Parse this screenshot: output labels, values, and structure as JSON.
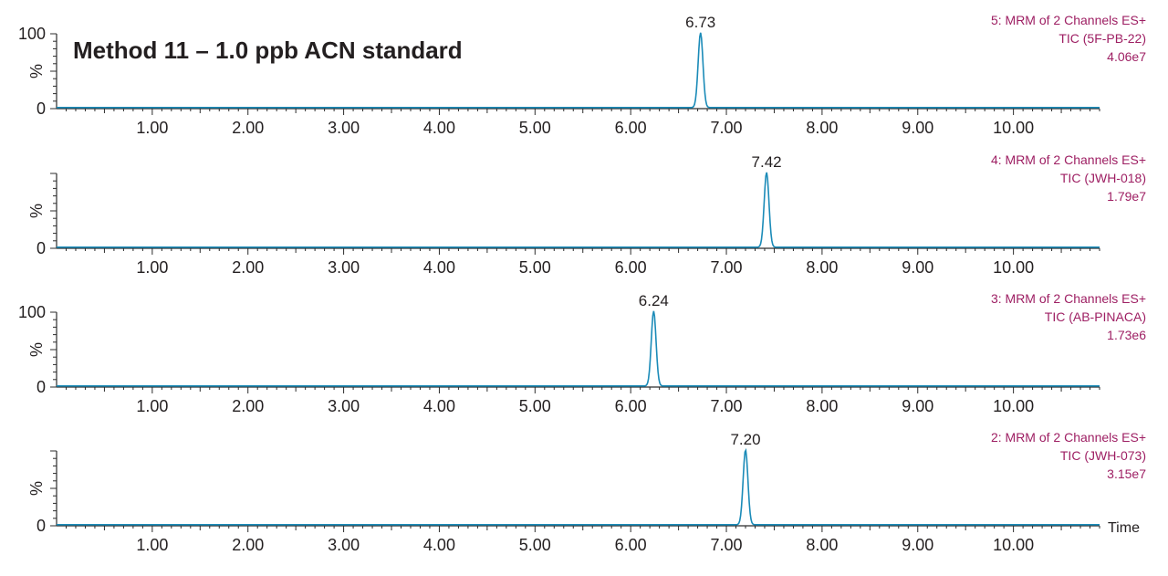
{
  "title": "Method 11 – 1.0 ppb ACN standard",
  "colors": {
    "trace": "#1b8bb8",
    "axis": "#2c2c2c",
    "info": "#9e1f63",
    "text": "#231f20"
  },
  "chart_data": {
    "type": "line",
    "title": "Method 11 – 1.0 ppb ACN standard",
    "xlabel": "Time",
    "ylabel": "%",
    "xlim": [
      0,
      10.9
    ],
    "x_ticks": [
      "1.00",
      "2.00",
      "3.00",
      "4.00",
      "5.00",
      "6.00",
      "7.00",
      "8.00",
      "9.00",
      "10.00"
    ],
    "panels": [
      {
        "info_line1": "5: MRM of 2 Channels ES+",
        "info_line2": "TIC (5F-PB-22)",
        "info_line3": "4.06e7",
        "y_ticks": [
          "100",
          "0"
        ],
        "ylim": [
          0,
          100
        ],
        "peak_rt": 6.73,
        "peak_label": "6.73",
        "peak_height": 100,
        "peak_width": 0.025
      },
      {
        "info_line1": "4: MRM of 2 Channels ES+",
        "info_line2": "TIC (JWH-018)",
        "info_line3": "1.79e7",
        "y_ticks": [
          "",
          "0"
        ],
        "ylim": [
          0,
          100
        ],
        "peak_rt": 7.42,
        "peak_label": "7.42",
        "peak_height": 100,
        "peak_width": 0.025
      },
      {
        "info_line1": "3: MRM of 2 Channels ES+",
        "info_line2": "TIC (AB-PINACA)",
        "info_line3": "1.73e6",
        "y_ticks": [
          "100",
          "0"
        ],
        "ylim": [
          0,
          100
        ],
        "peak_rt": 6.24,
        "peak_label": "6.24",
        "peak_height": 100,
        "peak_width": 0.025
      },
      {
        "info_line1": "2: MRM of 2 Channels ES+",
        "info_line2": "TIC (JWH-073)",
        "info_line3": "3.15e7",
        "y_ticks": [
          "",
          "0"
        ],
        "ylim": [
          0,
          100
        ],
        "peak_rt": 7.2,
        "peak_label": "7.20",
        "peak_height": 100,
        "peak_width": 0.025
      }
    ]
  }
}
